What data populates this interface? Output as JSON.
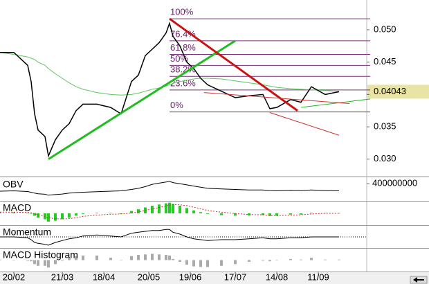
{
  "chart_data": {
    "type": "stock",
    "x": [
      0,
      4,
      8,
      9,
      10,
      11,
      13,
      14,
      16,
      18,
      20,
      22,
      24,
      28,
      32,
      35,
      38,
      40,
      42,
      44,
      46,
      48,
      49,
      50,
      52,
      54,
      56,
      58,
      60,
      64,
      68,
      72,
      76,
      78,
      80,
      84,
      87,
      90,
      94,
      98
    ],
    "xlim": [
      0,
      106
    ],
    "xticks": [
      {
        "value": 4,
        "label": "20/02"
      },
      {
        "value": 18,
        "label": "21/03"
      },
      {
        "value": 30,
        "label": "18/04"
      },
      {
        "value": 43,
        "label": "20/05"
      },
      {
        "value": 55,
        "label": "19/06"
      },
      {
        "value": 68,
        "label": "17/07"
      },
      {
        "value": 80,
        "label": "14/08"
      },
      {
        "value": 92,
        "label": "11/09"
      }
    ],
    "ylim": [
      0.0273,
      0.0546
    ],
    "yticks": [
      {
        "value": 0.03,
        "label": "0.030"
      },
      {
        "value": 0.035,
        "label": "0.035"
      },
      {
        "value": 0.04,
        "label": "0.040"
      },
      {
        "value": 0.045,
        "label": "0.045"
      },
      {
        "value": 0.05,
        "label": "0.050"
      }
    ],
    "last_price": 0.04043,
    "series": [
      {
        "color": "#000000",
        "values": [
          0.0465,
          0.0465,
          0.0445,
          0.042,
          0.037,
          0.0345,
          0.0335,
          0.0305,
          0.033,
          0.0345,
          0.0355,
          0.0375,
          0.0385,
          0.0385,
          0.038,
          0.037,
          0.042,
          0.043,
          0.046,
          0.047,
          0.048,
          0.0495,
          0.051,
          0.049,
          0.0475,
          0.045,
          0.044,
          0.0425,
          0.0415,
          0.0405,
          0.0395,
          0.0398,
          0.04,
          0.0378,
          0.038,
          0.0392,
          0.0388,
          0.0412,
          0.04,
          0.04043
        ]
      },
      {
        "color": "#5cc85c",
        "values": [
          0.0465,
          0.0462,
          0.0458,
          0.0456,
          0.0454,
          0.045,
          0.0445,
          0.044,
          0.0432,
          0.0425,
          0.0418,
          0.0412,
          0.0408,
          0.0403,
          0.04,
          0.0399,
          0.04,
          0.0402,
          0.0405,
          0.0408,
          0.041,
          0.0413,
          0.0415,
          0.0417,
          0.042,
          0.0422,
          0.0424,
          0.0425,
          0.0425,
          0.0424,
          0.0421,
          0.0418,
          0.0415,
          0.0413,
          0.0411,
          0.0409,
          0.0408,
          0.0407,
          0.0406,
          0.0405
        ]
      }
    ],
    "trendlines": [
      {
        "color": "#22bb22",
        "width": 3,
        "x": [
          14,
          68
        ],
        "values": [
          0.03,
          0.0483
        ]
      },
      {
        "color": "#cc1111",
        "width": 3,
        "x": [
          49,
          86
        ],
        "values": [
          0.0517,
          0.0375
        ]
      },
      {
        "color": "#22bb22",
        "width": 1,
        "x": [
          87,
          107
        ],
        "values": [
          0.038,
          0.0393
        ]
      },
      {
        "color": "#cc3333",
        "width": 1,
        "x": [
          59,
          101
        ],
        "values": [
          0.0403,
          0.0386
        ]
      },
      {
        "color": "#cc3333",
        "width": 1,
        "x": [
          78,
          98
        ],
        "values": [
          0.0372,
          0.0337
        ]
      }
    ],
    "fibonacci": {
      "color": "#7a2a7a",
      "x": [
        49,
        107
      ],
      "levels": [
        {
          "label": "100%",
          "value": 0.0517
        },
        {
          "label": "76.4%",
          "value": 0.0483
        },
        {
          "label": "61.8%",
          "value": 0.0462
        },
        {
          "label": "50%",
          "value": 0.0445
        },
        {
          "label": "38.2%",
          "value": 0.0428
        },
        {
          "label": "23.6%",
          "value": 0.0407
        },
        {
          "label": "0%",
          "value": 0.0373
        }
      ]
    },
    "panels": [
      {
        "title": "OBV",
        "ylim": [
          250000000,
          450000000
        ],
        "yticks": [
          400000000
        ],
        "series": [
          {
            "kind": "line",
            "color": "#000000",
            "values": [
              335000000,
              338000000,
              332000000,
              325000000,
              318000000,
              312000000,
              308000000,
              300000000,
              305000000,
              310000000,
              318000000,
              322000000,
              326000000,
              330000000,
              335000000,
              338000000,
              350000000,
              360000000,
              375000000,
              395000000,
              405000000,
              415000000,
              420000000,
              410000000,
              400000000,
              390000000,
              380000000,
              370000000,
              360000000,
              355000000,
              350000000,
              345000000,
              345000000,
              340000000,
              338000000,
              342000000,
              340000000,
              345000000,
              340000000,
              338000000
            ]
          }
        ]
      },
      {
        "title": "MACD",
        "ylim": [
          -0.004,
          0.004
        ],
        "series": [
          {
            "kind": "bars",
            "color": "#22cc22",
            "values": [
              0.0005,
              0.0004,
              0.0002,
              0,
              -0.0008,
              -0.0015,
              -0.002,
              -0.0028,
              -0.0025,
              -0.002,
              -0.0015,
              -0.0008,
              -0.0002,
              0.0002,
              0.0001,
              -0.0002,
              0.0008,
              0.0014,
              0.002,
              0.0026,
              0.003,
              0.0034,
              0.0036,
              0.0032,
              0.0026,
              0.0018,
              0.001,
              0.0004,
              -0.0002,
              -0.0006,
              -0.0008,
              -0.0007,
              -0.0006,
              -0.0009,
              -0.0008,
              -0.0004,
              -0.0004,
              0.0002,
              0.0001,
              0.0001
            ]
          },
          {
            "kind": "dotted",
            "color": "#cc3333",
            "values": [
              0.0004,
              0.0004,
              0.0003,
              0.0002,
              -0.0001,
              -0.0005,
              -0.001,
              -0.0015,
              -0.0018,
              -0.0019,
              -0.0018,
              -0.0015,
              -0.001,
              -0.0006,
              -0.0003,
              -0.0002,
              0.0001,
              0.0005,
              0.001,
              0.0015,
              0.002,
              0.0025,
              0.0028,
              0.003,
              0.0029,
              0.0026,
              0.0021,
              0.0016,
              0.001,
              0.0004,
              -0.0001,
              -0.0004,
              -0.0005,
              -0.0007,
              -0.0008,
              -0.0006,
              -0.0005,
              -0.0002,
              0,
              0
            ]
          }
        ]
      },
      {
        "title": "Momentum",
        "ylim": [
          88,
          112
        ],
        "baseline": 100,
        "series": [
          {
            "kind": "line",
            "color": "#000000",
            "values": [
              100,
              100,
              99,
              97,
              94,
              93,
              92,
              91,
              94,
              96,
              98,
              99,
              101,
              102,
              101,
              100,
              104,
              105,
              106,
              107,
              107,
              108,
              108,
              105,
              103,
              100,
              98,
              97,
              96,
              97,
              97,
              98,
              99,
              98,
              98,
              99,
              99,
              100,
              100,
              100
            ]
          }
        ]
      },
      {
        "title": "MACD Histogram",
        "ylim": [
          -0.002,
          0.002
        ],
        "series": [
          {
            "kind": "bars",
            "color": "#aaaaaa",
            "values": [
              0.0001,
              0,
              -0.0001,
              -0.0002,
              -0.0007,
              -0.001,
              -0.001,
              -0.0013,
              -0.0007,
              -0.0001,
              0.0003,
              0.0007,
              0.0008,
              0.0008,
              0.0004,
              0,
              0.0007,
              0.0009,
              0.001,
              0.0011,
              0.001,
              0.0009,
              0.0008,
              0.0002,
              -0.0003,
              -0.0008,
              -0.0011,
              -0.0012,
              -0.0012,
              -0.001,
              -0.0007,
              -0.0003,
              -0.0001,
              -0.0002,
              0,
              0.0002,
              0.0001,
              0.0004,
              0.0001,
              0.0001
            ]
          }
        ]
      }
    ]
  }
}
